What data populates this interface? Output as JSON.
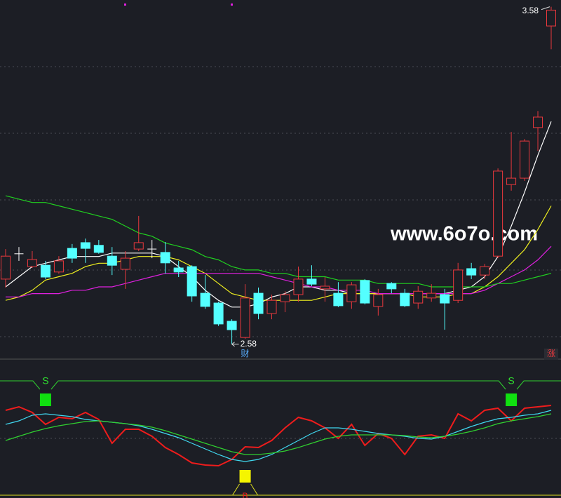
{
  "chart_data": [
    {
      "type": "candlestick",
      "open": [
        2.773,
        2.848,
        2.81,
        2.814,
        2.794,
        2.864,
        2.881,
        2.873,
        2.841,
        2.802,
        2.862,
        2.862,
        2.852,
        2.806,
        2.81,
        2.731,
        2.702,
        2.648,
        2.6,
        2.731,
        2.671,
        2.706,
        2.727,
        2.773,
        2.744,
        2.731,
        2.706,
        2.769,
        2.692,
        2.76,
        2.731,
        2.702,
        2.717,
        2.727,
        2.71,
        2.804,
        2.785,
        2.841,
        3.053,
        3.072,
        3.222,
        3.523
      ],
      "close": [
        2.841,
        2.848,
        2.831,
        2.779,
        2.827,
        2.835,
        2.864,
        2.852,
        2.814,
        2.835,
        2.881,
        2.862,
        2.821,
        2.794,
        2.723,
        2.692,
        2.64,
        2.623,
        2.717,
        2.671,
        2.71,
        2.727,
        2.773,
        2.758,
        2.752,
        2.694,
        2.756,
        2.702,
        2.727,
        2.744,
        2.694,
        2.737,
        2.731,
        2.702,
        2.8,
        2.785,
        2.81,
        3.093,
        3.072,
        3.182,
        3.253,
        3.57
      ],
      "high": [
        2.862,
        2.868,
        2.856,
        2.827,
        2.841,
        2.877,
        2.893,
        2.889,
        2.868,
        2.856,
        2.96,
        2.889,
        2.883,
        2.827,
        2.814,
        2.785,
        2.706,
        2.654,
        2.758,
        2.748,
        2.727,
        2.737,
        2.81,
        2.814,
        2.779,
        2.764,
        2.764,
        2.773,
        2.744,
        2.764,
        2.744,
        2.752,
        2.758,
        2.744,
        2.821,
        2.821,
        2.818,
        3.101,
        3.209,
        3.188,
        3.271,
        3.58
      ],
      "low": [
        2.748,
        2.827,
        2.806,
        2.773,
        2.789,
        2.821,
        2.821,
        2.848,
        2.785,
        2.744,
        2.856,
        2.835,
        2.789,
        2.779,
        2.706,
        2.685,
        2.634,
        2.58,
        2.596,
        2.654,
        2.654,
        2.675,
        2.706,
        2.752,
        2.706,
        2.69,
        2.685,
        2.698,
        2.665,
        2.731,
        2.69,
        2.685,
        2.706,
        2.623,
        2.702,
        2.773,
        2.773,
        2.835,
        3.035,
        3.064,
        3.153,
        3.454
      ],
      "up_color": "#e8383d",
      "down_color": "#54ffff",
      "flat_color": "#ffffff",
      "ylim": [
        2.54,
        3.6
      ],
      "series": [
        {
          "color": "#ffffff",
          "values": [
            2.75,
            2.78,
            2.81,
            2.82,
            2.83,
            2.84,
            2.84,
            2.84,
            2.85,
            2.85,
            2.85,
            2.85,
            2.84,
            2.81,
            2.78,
            2.74,
            2.71,
            2.69,
            2.69,
            2.7,
            2.72,
            2.73,
            2.75,
            2.75,
            2.74,
            2.74,
            2.73,
            2.73,
            2.73,
            2.73,
            2.73,
            2.73,
            2.73,
            2.73,
            2.74,
            2.75,
            2.78,
            2.84,
            2.93,
            3.03,
            3.14,
            3.24
          ]
        },
        {
          "color": "#f0f020",
          "values": [
            2.71,
            2.72,
            2.74,
            2.77,
            2.78,
            2.79,
            2.81,
            2.82,
            2.82,
            2.83,
            2.84,
            2.84,
            2.84,
            2.83,
            2.81,
            2.79,
            2.76,
            2.73,
            2.72,
            2.71,
            2.71,
            2.71,
            2.71,
            2.71,
            2.72,
            2.73,
            2.73,
            2.73,
            2.73,
            2.73,
            2.73,
            2.72,
            2.72,
            2.72,
            2.73,
            2.73,
            2.75,
            2.78,
            2.82,
            2.86,
            2.92,
            2.99
          ]
        },
        {
          "color": "#e020e0",
          "values": [
            2.72,
            2.72,
            2.73,
            2.73,
            2.73,
            2.74,
            2.74,
            2.75,
            2.75,
            2.76,
            2.77,
            2.78,
            2.79,
            2.79,
            2.79,
            2.79,
            2.79,
            2.79,
            2.79,
            2.79,
            2.78,
            2.77,
            2.76,
            2.75,
            2.75,
            2.74,
            2.74,
            2.74,
            2.73,
            2.73,
            2.73,
            2.73,
            2.73,
            2.73,
            2.73,
            2.73,
            2.74,
            2.76,
            2.78,
            2.8,
            2.83,
            2.87
          ]
        },
        {
          "color": "#20d020",
          "values": [
            3.02,
            3.01,
            3.0,
            3.0,
            2.99,
            2.98,
            2.97,
            2.96,
            2.95,
            2.93,
            2.91,
            2.9,
            2.88,
            2.87,
            2.86,
            2.84,
            2.83,
            2.81,
            2.8,
            2.8,
            2.79,
            2.79,
            2.78,
            2.78,
            2.78,
            2.77,
            2.77,
            2.77,
            2.76,
            2.76,
            2.76,
            2.76,
            2.75,
            2.75,
            2.75,
            2.75,
            2.75,
            2.76,
            2.76,
            2.77,
            2.78,
            2.79
          ]
        }
      ],
      "event_label": "财",
      "corner_label": "涨",
      "watermark": "www.6o7o.com"
    },
    {
      "type": "line",
      "ylim": [
        0,
        190
      ],
      "series": [
        {
          "color": "#ee1c1c",
          "values": [
            125,
            130,
            122,
            105,
            115,
            113,
            122,
            112,
            78,
            98,
            98,
            88,
            72,
            62,
            50,
            47,
            46,
            55,
            73,
            72,
            82,
            100,
            115,
            110,
            100,
            85,
            105,
            75,
            92,
            85,
            62,
            88,
            90,
            85,
            120,
            110,
            125,
            128,
            110,
            128,
            130,
            132
          ]
        },
        {
          "color": "#40d8f0",
          "values": [
            105,
            110,
            118,
            120,
            118,
            116,
            112,
            110,
            108,
            106,
            103,
            98,
            92,
            86,
            78,
            70,
            62,
            55,
            52,
            55,
            62,
            72,
            82,
            92,
            100,
            100,
            98,
            95,
            92,
            90,
            88,
            85,
            84,
            88,
            95,
            102,
            108,
            113,
            115,
            118,
            120,
            125
          ]
        },
        {
          "color": "#30d030",
          "values": [
            82,
            88,
            94,
            99,
            103,
            106,
            109,
            110,
            108,
            106,
            104,
            101,
            96,
            90,
            84,
            78,
            72,
            66,
            62,
            62,
            64,
            67,
            72,
            78,
            84,
            88,
            90,
            90,
            90,
            90,
            89,
            87,
            86,
            88,
            91,
            95,
            100,
            106,
            110,
            113,
            116,
            120
          ]
        }
      ],
      "sell_signals": [
        null,
        null,
        null,
        "S",
        null,
        null,
        null,
        null,
        null,
        null,
        null,
        null,
        null,
        null,
        null,
        null,
        null,
        null,
        null,
        null,
        null,
        null,
        null,
        null,
        null,
        null,
        null,
        null,
        null,
        null,
        null,
        null,
        null,
        null,
        null,
        null,
        null,
        null,
        "S",
        null,
        null,
        null
      ],
      "buy_signals": [
        null,
        null,
        null,
        null,
        null,
        null,
        null,
        null,
        null,
        null,
        null,
        null,
        null,
        null,
        null,
        null,
        null,
        null,
        "B",
        null,
        null,
        null,
        null,
        null,
        null,
        null,
        null,
        null,
        null,
        null,
        null,
        null,
        null,
        null,
        null,
        null,
        null,
        null,
        null,
        null,
        null,
        null
      ]
    }
  ]
}
